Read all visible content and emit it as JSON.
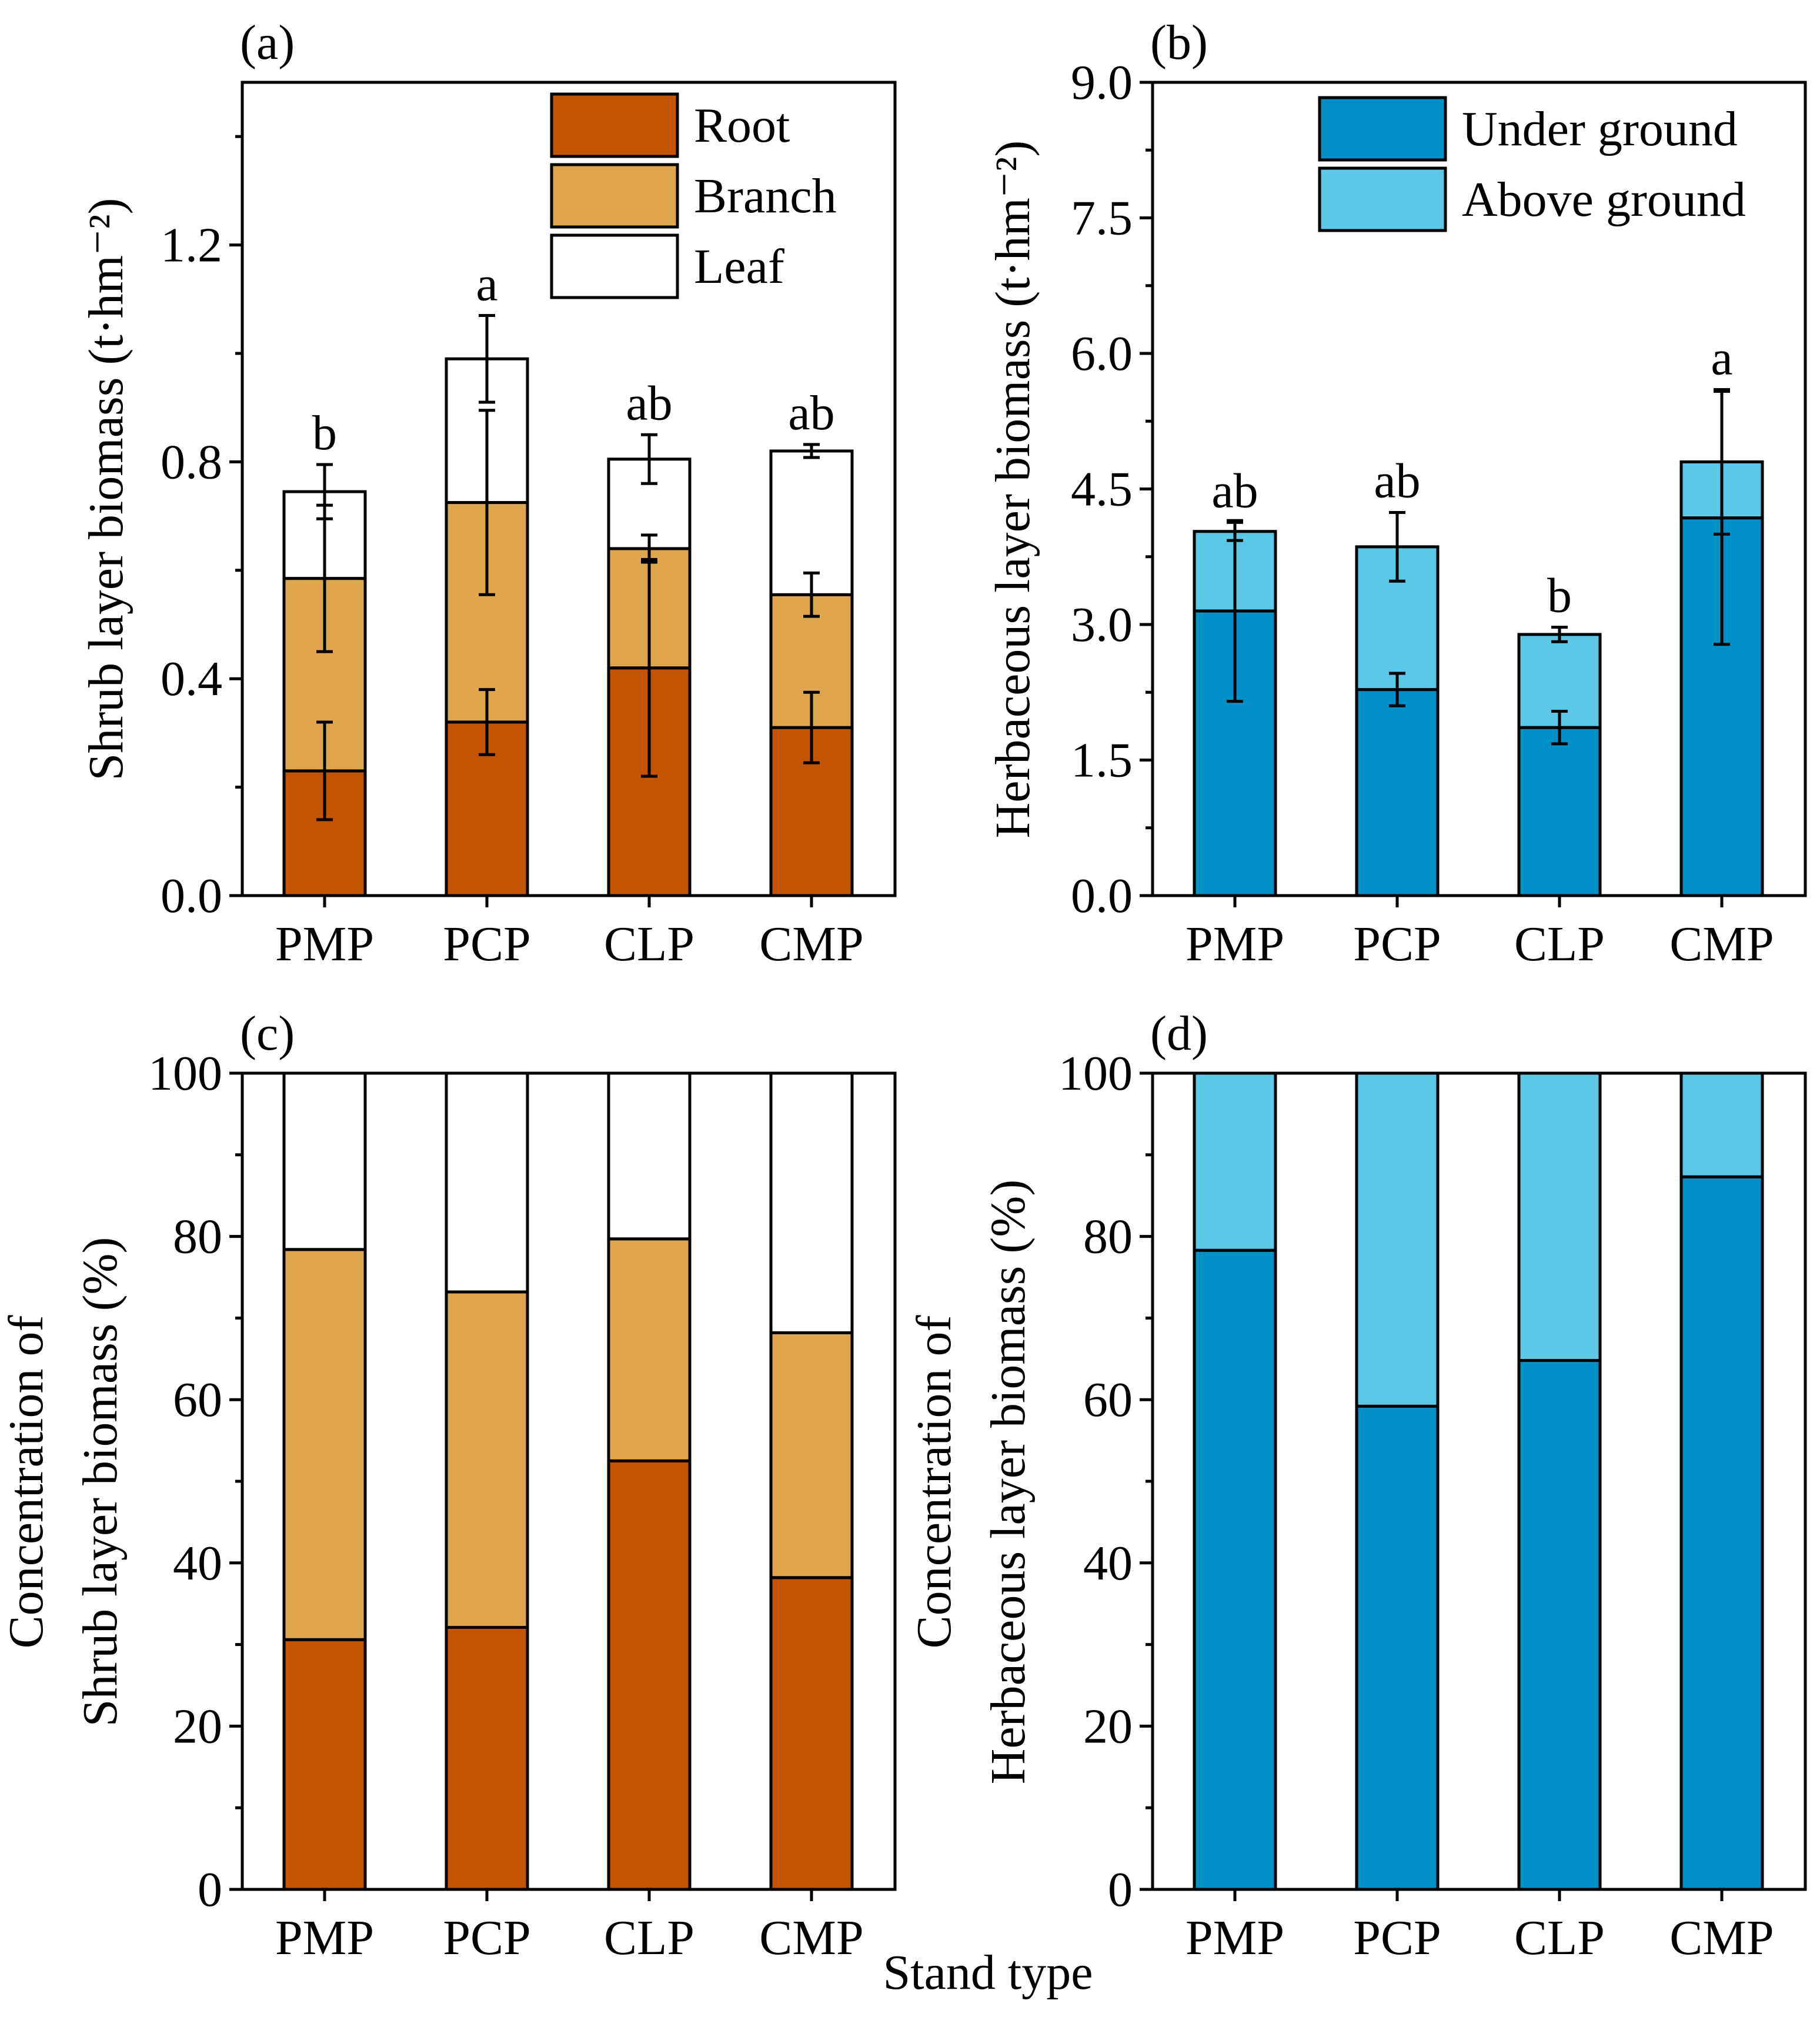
{
  "figure": {
    "global_xlabel": "Stand type"
  },
  "chart_data": [
    {
      "id": "a",
      "panel_label": "(a)",
      "type": "bar",
      "stacked": true,
      "title": "",
      "xlabel": "",
      "ylabel": "Shrub layer biomass (t·hm⁻²)",
      "ylim": [
        0,
        1.5
      ],
      "yticks": [
        "0.0",
        "0.4",
        "0.8",
        "1.2"
      ],
      "categories": [
        "PMP",
        "PCP",
        "CLP",
        "CMP"
      ],
      "series": [
        {
          "name": "Root",
          "color": "#c45400",
          "values": [
            0.23,
            0.32,
            0.42,
            0.31
          ],
          "errors": [
            0.09,
            0.06,
            0.2,
            0.065
          ]
        },
        {
          "name": "Branch",
          "color": "#dfa64d",
          "values": [
            0.355,
            0.405,
            0.22,
            0.245
          ],
          "errors": [
            0.135,
            0.17,
            0.025,
            0.04
          ]
        },
        {
          "name": "Leaf",
          "color": "#ffffff",
          "values": [
            0.16,
            0.265,
            0.165,
            0.265
          ],
          "errors": [
            0.05,
            0.08,
            0.045,
            0.012
          ]
        }
      ],
      "significance": [
        "b",
        "a",
        "ab",
        "ab"
      ],
      "legend": "top-right"
    },
    {
      "id": "b",
      "panel_label": "(b)",
      "type": "bar",
      "stacked": true,
      "title": "",
      "xlabel": "",
      "ylabel": "Herbaceous layer biomass (t·hm⁻²)",
      "ylim": [
        0,
        9.0
      ],
      "yticks": [
        "0.0",
        "1.5",
        "3.0",
        "4.5",
        "6.0",
        "7.5",
        "9.0"
      ],
      "categories": [
        "PMP",
        "PCP",
        "CLP",
        "CMP"
      ],
      "series": [
        {
          "name": "Under ground",
          "color": "#0090c8",
          "values": [
            3.15,
            2.28,
            1.86,
            4.18
          ],
          "errors": [
            1.0,
            0.18,
            0.18,
            1.4
          ]
        },
        {
          "name": "Above ground",
          "color": "#5ac8e6",
          "values": [
            0.88,
            1.58,
            1.03,
            0.62
          ],
          "errors": [
            0.1,
            0.38,
            0.08,
            0.8
          ]
        }
      ],
      "significance": [
        "ab",
        "ab",
        "b",
        "a"
      ],
      "legend": "top-right"
    },
    {
      "id": "c",
      "panel_label": "(c)",
      "type": "bar",
      "stacked": true,
      "title": "",
      "xlabel": "",
      "ylabel": "Concentration of Shrub layer biomass (%)",
      "ylabel_lines": [
        "Concentration of",
        "Shrub layer biomass (%)"
      ],
      "ylim": [
        0,
        100
      ],
      "yticks": [
        "0",
        "20",
        "40",
        "60",
        "80",
        "100"
      ],
      "categories": [
        "PMP",
        "PCP",
        "CLP",
        "CMP"
      ],
      "series": [
        {
          "name": "Root",
          "color": "#c45400",
          "values": [
            30.6,
            32.1,
            52.5,
            38.2
          ]
        },
        {
          "name": "Branch",
          "color": "#dfa64d",
          "values": [
            47.8,
            41.1,
            27.2,
            30.0
          ]
        },
        {
          "name": "Leaf",
          "color": "#ffffff",
          "values": [
            21.6,
            26.8,
            20.3,
            31.8
          ]
        }
      ]
    },
    {
      "id": "d",
      "panel_label": "(d)",
      "type": "bar",
      "stacked": true,
      "title": "",
      "xlabel": "",
      "ylabel": "Concentration of Herbaceous layer biomass (%)",
      "ylabel_lines": [
        "Concentration of",
        "Herbaceous layer biomass (%)"
      ],
      "ylim": [
        0,
        100
      ],
      "yticks": [
        "0",
        "20",
        "40",
        "60",
        "80",
        "100"
      ],
      "categories": [
        "PMP",
        "PCP",
        "CLP",
        "CMP"
      ],
      "series": [
        {
          "name": "Under ground",
          "color": "#0090c8",
          "values": [
            78.3,
            59.2,
            64.8,
            87.3
          ]
        },
        {
          "name": "Above ground",
          "color": "#5ac8e6",
          "values": [
            21.7,
            40.8,
            35.2,
            12.7
          ]
        }
      ]
    }
  ]
}
